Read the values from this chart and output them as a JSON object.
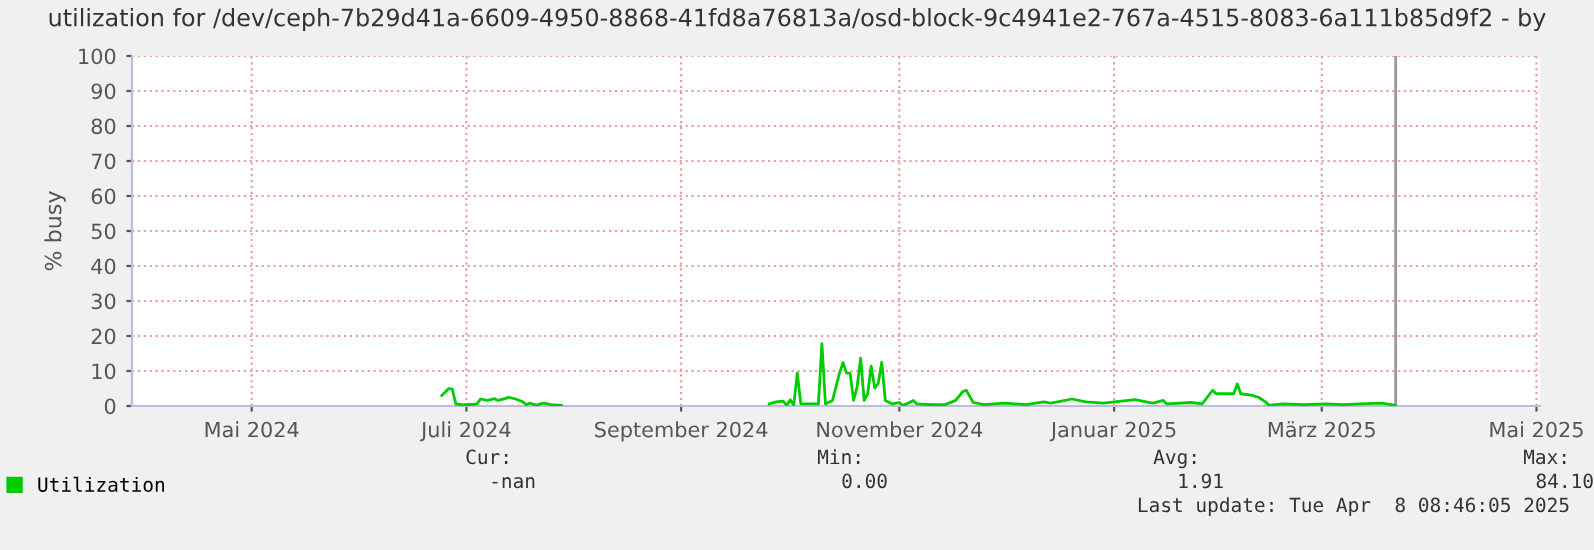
{
  "chart_data": {
    "type": "line",
    "title": "utilization for /dev/ceph-7b29d41a-6609-4950-8868-41fd8a76813a/osd-block-9c4941e2-767a-4515-8083-6a111b85d9f2 - by",
    "ylabel": "% busy",
    "x": [
      "2024-07-09",
      "2024-07-11",
      "2024-07-12",
      "2024-07-13",
      "2024-07-15",
      "2024-07-18",
      "2024-07-19",
      "2024-07-20",
      "2024-07-22",
      "2024-07-24",
      "2024-07-25",
      "2024-07-27",
      "2024-07-28",
      "2024-07-30",
      "2024-08-01",
      "2024-08-02",
      "2024-08-03",
      "2024-08-05",
      "2024-08-06",
      "2024-08-07",
      "2024-08-09",
      "2024-08-12",
      "2024-09-10",
      "2024-10-10",
      "2024-10-12",
      "2024-10-14",
      "2024-10-15",
      "2024-10-16",
      "2024-10-17",
      "2024-10-18",
      "2024-10-19",
      "2024-10-21",
      "2024-10-24",
      "2024-10-25",
      "2024-10-26",
      "2024-10-28",
      "2024-10-30",
      "2024-10-31",
      "2024-11-01",
      "2024-11-02",
      "2024-11-03",
      "2024-11-04",
      "2024-11-05",
      "2024-11-06",
      "2024-11-07",
      "2024-11-08",
      "2024-11-09",
      "2024-11-10",
      "2024-11-11",
      "2024-11-12",
      "2024-11-14",
      "2024-11-16",
      "2024-11-17",
      "2024-11-18",
      "2024-11-20",
      "2024-11-21",
      "2024-11-25",
      "2024-11-29",
      "2024-12-02",
      "2024-12-04",
      "2024-12-05",
      "2024-12-07",
      "2024-12-10",
      "2024-12-16",
      "2024-12-22",
      "2024-12-27",
      "2024-12-29",
      "2024-12-31",
      "2025-01-04",
      "2025-01-08",
      "2025-01-13",
      "2025-01-18",
      "2025-01-22",
      "2025-01-24",
      "2025-01-27",
      "2025-01-30",
      "2025-01-31",
      "2025-02-07",
      "2025-02-10",
      "2025-02-13",
      "2025-02-14",
      "2025-02-19",
      "2025-02-20",
      "2025-02-21",
      "2025-02-24",
      "2025-02-26",
      "2025-02-28",
      "2025-03-01",
      "2025-03-05",
      "2025-03-11",
      "2025-03-17",
      "2025-03-22",
      "2025-03-27",
      "2025-04-02",
      "2025-04-06"
    ],
    "series": [
      {
        "name": "Utilization",
        "color": "#00cc00",
        "values": [
          3,
          5,
          4.8,
          0.6,
          0.3,
          0.5,
          0.6,
          2,
          1.6,
          2.1,
          1.6,
          2.1,
          2.5,
          2,
          1.2,
          0.4,
          0.8,
          0.2,
          0.6,
          0.8,
          0.4,
          0.2,
          null,
          0.6,
          1.2,
          1.4,
          0.2,
          1.8,
          0.3,
          9.4,
          0.6,
          0.6,
          0.6,
          17.8,
          0.6,
          1.6,
          9.4,
          12.4,
          9.4,
          9.4,
          1.6,
          5.5,
          13.7,
          1.6,
          3.5,
          11.4,
          5.1,
          6.5,
          12.5,
          1.6,
          0.6,
          1.0,
          0.2,
          0.6,
          1.6,
          0.6,
          0.4,
          0.4,
          1.6,
          4.1,
          4.5,
          1.0,
          0.4,
          0.8,
          0.4,
          1.2,
          0.8,
          1.2,
          2.0,
          1.2,
          0.8,
          1.4,
          1.8,
          1.4,
          0.8,
          1.6,
          0.6,
          1.0,
          0.6,
          4.5,
          3.5,
          3.5,
          6.3,
          3.5,
          3.1,
          2.5,
          1.2,
          0.2,
          0.6,
          0.4,
          0.6,
          0.4,
          0.6,
          0.8,
          0.2
        ]
      }
    ],
    "xlim": [
      "2024-04-12",
      "2025-05-17"
    ],
    "xticks": [
      {
        "value": "2024-05-16",
        "label": "Mai 2024"
      },
      {
        "value": "2024-07-16",
        "label": "Juli 2024"
      },
      {
        "value": "2024-09-15",
        "label": "September 2024"
      },
      {
        "value": "2024-11-16",
        "label": "November 2024"
      },
      {
        "value": "2025-01-16",
        "label": "Januar 2025"
      },
      {
        "value": "2025-03-16",
        "label": "März 2025"
      },
      {
        "value": "2025-05-16",
        "label": "Mai 2025"
      }
    ],
    "ylim": [
      0,
      100
    ],
    "yticks": [
      0,
      10,
      20,
      30,
      40,
      50,
      60,
      70,
      80,
      90,
      100
    ],
    "grid": true,
    "legend": "bottom left",
    "line_style": "solid",
    "marker": "none",
    "ref_lines": [
      {
        "axis": "x",
        "value": "2025-04-06",
        "color": "#999999"
      }
    ],
    "annotations": [
      "Cur:",
      "Min:",
      "Avg:",
      "Max:",
      "-nan",
      "0.00",
      "1.91",
      "84.10",
      "Last update: Tue Apr  8 08:46:05 2025"
    ]
  }
}
